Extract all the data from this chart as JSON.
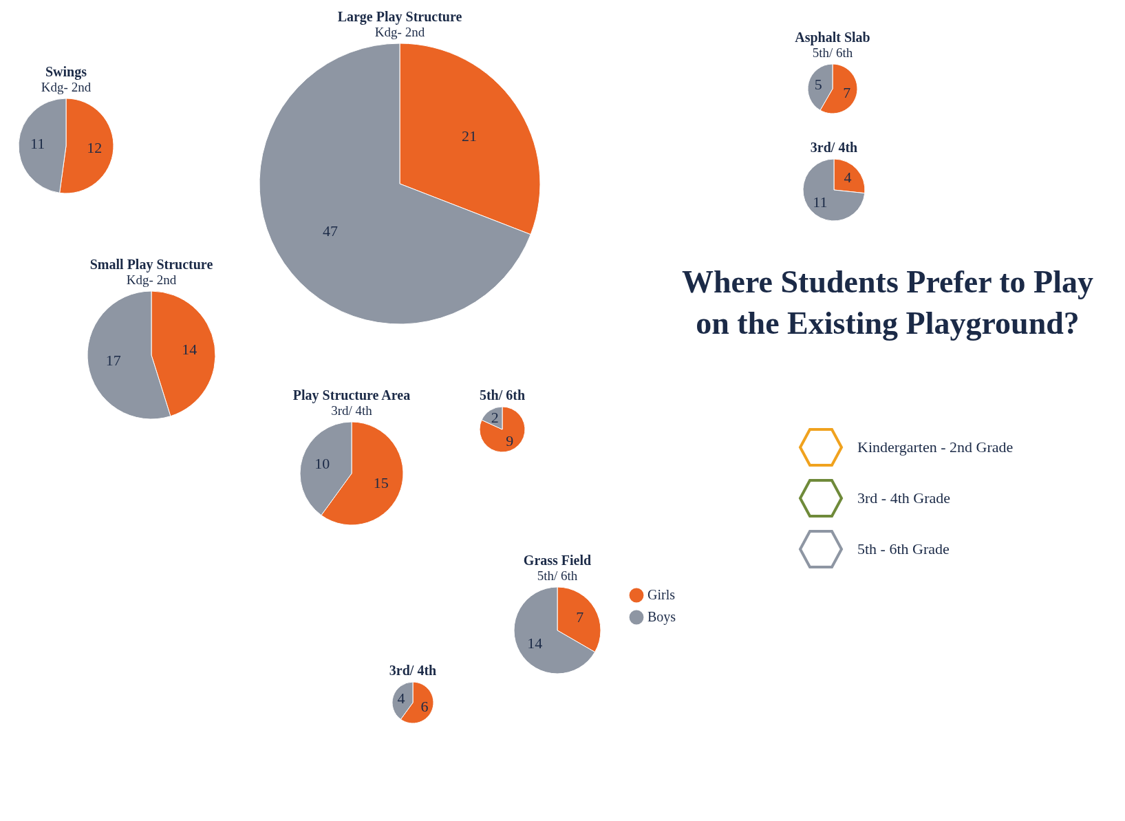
{
  "chart_data": [
    {
      "type": "pie",
      "title": "Swings",
      "subtitle": "Kdg- 2nd",
      "categories": [
        null,
        null
      ],
      "values": [
        12,
        11
      ],
      "colors": [
        "#eb6424",
        "#8e96a3"
      ],
      "data_labels": true
    },
    {
      "type": "pie",
      "title": "Large Play Structure",
      "subtitle": "Kdg- 2nd",
      "categories": [
        null,
        null
      ],
      "values": [
        21,
        47
      ],
      "colors": [
        "#eb6424",
        "#8e96a3"
      ],
      "data_labels": true
    },
    {
      "type": "pie",
      "title": "Small Play Structure",
      "subtitle": "Kdg- 2nd",
      "categories": [
        null,
        null
      ],
      "values": [
        14,
        17
      ],
      "colors": [
        "#eb6424",
        "#8e96a3"
      ],
      "data_labels": true
    },
    {
      "type": "pie",
      "title": "Play Structure Area",
      "subtitle": "3rd/ 4th",
      "categories": [
        null,
        null
      ],
      "values": [
        15,
        10
      ],
      "colors": [
        "#eb6424",
        "#8e96a3"
      ],
      "data_labels": true
    },
    {
      "type": "pie",
      "title": "5th/ 6th",
      "categories": [
        null,
        null
      ],
      "values": [
        9,
        2
      ],
      "colors": [
        "#eb6424",
        "#8e96a3"
      ],
      "data_labels": true
    },
    {
      "type": "pie",
      "title": "Asphalt Slab",
      "subtitle": "5th/ 6th",
      "categories": [
        null,
        null
      ],
      "values": [
        7,
        5
      ],
      "colors": [
        "#eb6424",
        "#8e96a3"
      ],
      "data_labels": true
    },
    {
      "type": "pie",
      "title": "3rd/ 4th",
      "categories": [
        null,
        null
      ],
      "values": [
        4,
        11
      ],
      "colors": [
        "#eb6424",
        "#8e96a3"
      ],
      "data_labels": true
    },
    {
      "type": "pie",
      "title": "Grass Field",
      "subtitle": "5th/ 6th",
      "categories": [
        "Girls",
        "Boys"
      ],
      "values": [
        7,
        14
      ],
      "colors": [
        "#eb6424",
        "#8e96a3"
      ],
      "data_labels": true,
      "legend": "right"
    },
    {
      "type": "pie",
      "title": "3rd/ 4th",
      "categories": [
        null,
        null
      ],
      "values": [
        6,
        4
      ],
      "colors": [
        "#eb6424",
        "#8e96a3"
      ],
      "data_labels": true
    },
    {
      "type": "other",
      "title": "Where Students Prefer to Play on the Existing Playground?",
      "annotations": [
        "Kindergarten - 2nd Grade",
        "3rd - 4th Grade",
        "5th - 6th Grade"
      ]
    }
  ]
}
